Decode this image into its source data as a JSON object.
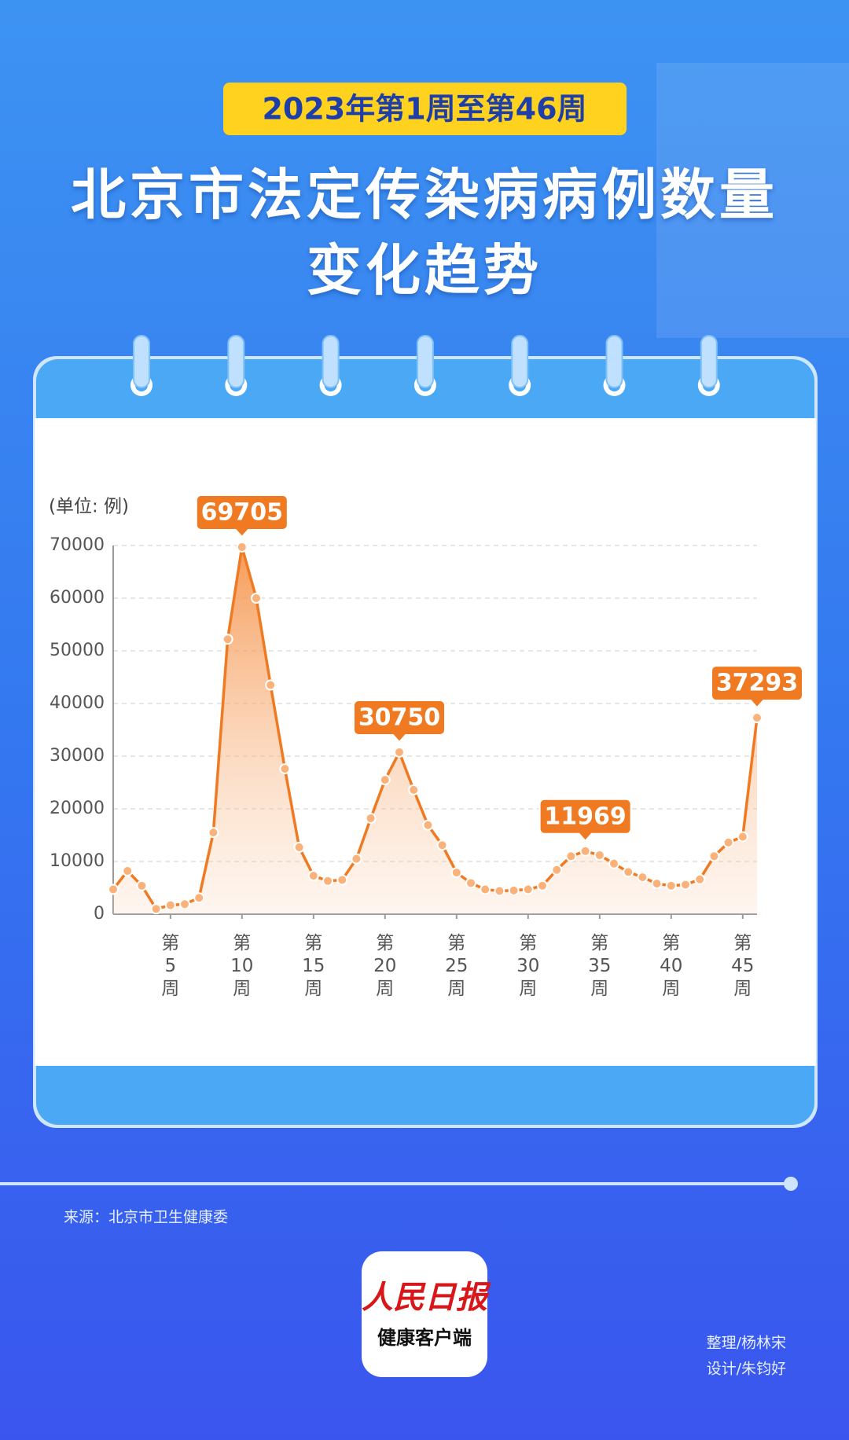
{
  "header": {
    "badge": "2023年第1周至第46周",
    "title": "北京市法定传染病病例数量变化趋势"
  },
  "chart_data": {
    "type": "line",
    "unit_label": "(单位: 例)",
    "color": "#f07a22",
    "categories": [
      null,
      null,
      null,
      null,
      "第\n5\n周",
      null,
      null,
      null,
      null,
      "第\n10\n周",
      null,
      null,
      null,
      null,
      "第\n15\n周",
      null,
      null,
      null,
      null,
      "第\n20\n周",
      null,
      null,
      null,
      null,
      "第\n25\n周",
      null,
      null,
      null,
      null,
      "第\n30\n周",
      null,
      null,
      null,
      null,
      "第\n35\n周",
      null,
      null,
      null,
      null,
      "第\n40\n周",
      null,
      null,
      null,
      null,
      "第\n45\n周",
      null
    ],
    "values": [
      4700,
      8200,
      5400,
      1000,
      1700,
      1900,
      3100,
      15500,
      52200,
      69705,
      60000,
      43500,
      27600,
      12700,
      7300,
      6300,
      6500,
      10500,
      18200,
      25500,
      30750,
      23600,
      16900,
      13100,
      7900,
      5900,
      4700,
      4400,
      4500,
      4700,
      5400,
      8400,
      11000,
      11969,
      11200,
      9600,
      8000,
      7000,
      5800,
      5400,
      5600,
      6600,
      11000,
      13600,
      14700,
      37293
    ],
    "value_labels": [
      null,
      null,
      null,
      null,
      null,
      null,
      null,
      null,
      null,
      "69705",
      null,
      null,
      null,
      null,
      null,
      null,
      null,
      null,
      null,
      null,
      "30750",
      null,
      null,
      null,
      null,
      null,
      null,
      null,
      null,
      null,
      null,
      null,
      null,
      "11969",
      null,
      null,
      null,
      null,
      null,
      null,
      null,
      null,
      null,
      null,
      null,
      "37293"
    ],
    "ylim": [
      0,
      70000
    ],
    "yticks": [
      0,
      10000,
      20000,
      30000,
      40000,
      50000,
      60000,
      70000
    ],
    "grid": true
  },
  "footer": {
    "source": "来源：北京市卫生健康委",
    "logo_name": "人民日报",
    "logo_sub": "健康客户端",
    "credit_1": "整理/杨林宋",
    "credit_2": "设计/朱钧好"
  }
}
